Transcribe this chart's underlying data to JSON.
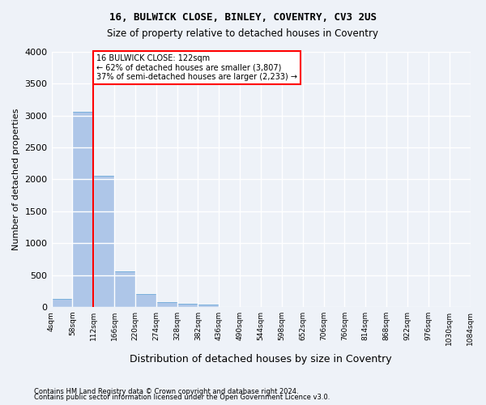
{
  "title1": "16, BULWICK CLOSE, BINLEY, COVENTRY, CV3 2US",
  "title2": "Size of property relative to detached houses in Coventry",
  "xlabel": "Distribution of detached houses by size in Coventry",
  "ylabel": "Number of detached properties",
  "footnote1": "Contains HM Land Registry data © Crown copyright and database right 2024.",
  "footnote2": "Contains public sector information licensed under the Open Government Licence v3.0.",
  "bar_values": [
    130,
    3060,
    2060,
    560,
    200,
    80,
    55,
    40,
    0,
    0,
    0,
    0,
    0,
    0,
    0,
    0,
    0,
    0,
    0,
    0
  ],
  "bin_labels": [
    "4sqm",
    "58sqm",
    "112sqm",
    "166sqm",
    "220sqm",
    "274sqm",
    "328sqm",
    "382sqm",
    "436sqm",
    "490sqm",
    "544sqm",
    "598sqm",
    "652sqm",
    "706sqm",
    "760sqm",
    "814sqm",
    "868sqm",
    "922sqm",
    "976sqm",
    "1030sqm",
    "1084sqm"
  ],
  "bar_color": "#aec6e8",
  "bar_edge_color": "#5a9fd4",
  "vline_x": 2,
  "vline_color": "red",
  "annotation_text": "16 BULWICK CLOSE: 122sqm\n← 62% of detached houses are smaller (3,807)\n37% of semi-detached houses are larger (2,233) →",
  "annotation_box_color": "white",
  "annotation_box_edge": "red",
  "ylim": [
    0,
    4000
  ],
  "yticks": [
    0,
    500,
    1000,
    1500,
    2000,
    2500,
    3000,
    3500,
    4000
  ],
  "background_color": "#eef2f8",
  "grid_color": "white"
}
